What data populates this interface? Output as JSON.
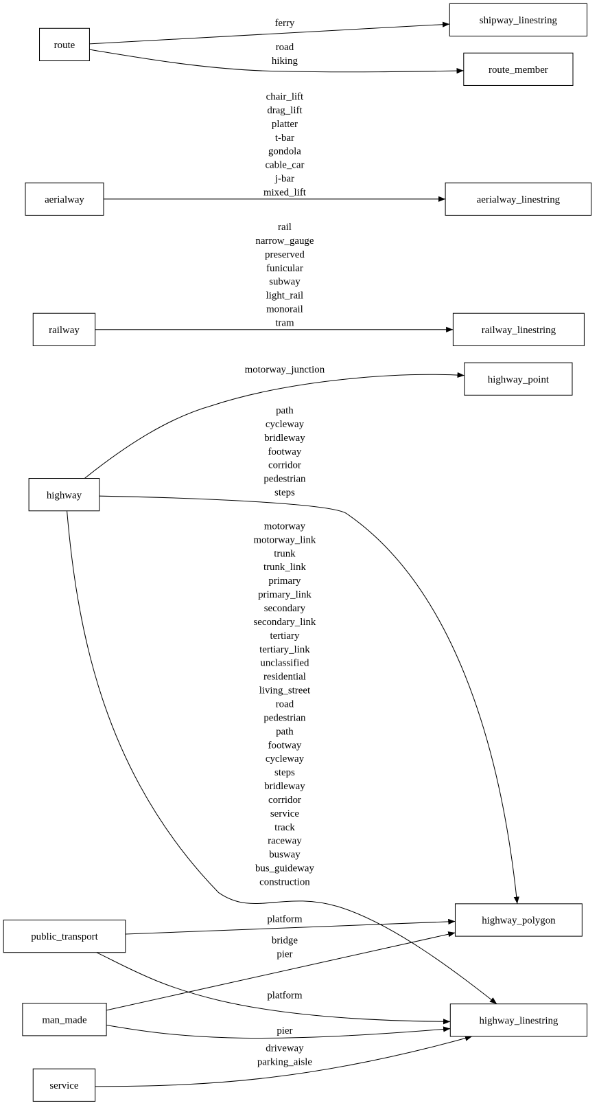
{
  "nodes": {
    "route": "route",
    "shipway_linestring": "shipway_linestring",
    "route_member": "route_member",
    "aerialway": "aerialway",
    "aerialway_linestring": "aerialway_linestring",
    "railway": "railway",
    "railway_linestring": "railway_linestring",
    "highway_point": "highway_point",
    "highway": "highway",
    "highway_polygon": "highway_polygon",
    "highway_linestring": "highway_linestring",
    "public_transport": "public_transport",
    "man_made": "man_made",
    "service": "service"
  },
  "edges": [
    {
      "from": "route",
      "to": "shipway_linestring",
      "labels": [
        "ferry"
      ]
    },
    {
      "from": "route",
      "to": "route_member",
      "labels": [
        "road",
        "hiking"
      ]
    },
    {
      "from": "aerialway",
      "to": "aerialway_linestring",
      "labels": [
        "chair_lift",
        "drag_lift",
        "platter",
        "t-bar",
        "gondola",
        "cable_car",
        "j-bar",
        "mixed_lift"
      ]
    },
    {
      "from": "railway",
      "to": "railway_linestring",
      "labels": [
        "rail",
        "narrow_gauge",
        "preserved",
        "funicular",
        "subway",
        "light_rail",
        "monorail",
        "tram"
      ]
    },
    {
      "from": "highway",
      "to": "highway_point",
      "labels": [
        "motorway_junction"
      ]
    },
    {
      "from": "highway",
      "to": "highway_polygon",
      "labels": [
        "path",
        "cycleway",
        "bridleway",
        "footway",
        "corridor",
        "pedestrian",
        "steps"
      ]
    },
    {
      "from": "highway",
      "to": "highway_linestring",
      "labels": [
        "motorway",
        "motorway_link",
        "trunk",
        "trunk_link",
        "primary",
        "primary_link",
        "secondary",
        "secondary_link",
        "tertiary",
        "tertiary_link",
        "unclassified",
        "residential",
        "living_street",
        "road",
        "pedestrian",
        "path",
        "footway",
        "cycleway",
        "steps",
        "bridleway",
        "corridor",
        "service",
        "track",
        "raceway",
        "busway",
        "bus_guideway",
        "construction"
      ]
    },
    {
      "from": "public_transport",
      "to": "highway_polygon",
      "labels": [
        "platform"
      ]
    },
    {
      "from": "public_transport",
      "to": "highway_linestring",
      "labels": [
        "platform"
      ]
    },
    {
      "from": "man_made",
      "to": "highway_polygon",
      "labels": [
        "bridge",
        "pier"
      ]
    },
    {
      "from": "man_made",
      "to": "highway_linestring",
      "labels": [
        "pier"
      ]
    },
    {
      "from": "service",
      "to": "highway_linestring",
      "labels": [
        "driveway",
        "parking_aisle"
      ]
    }
  ]
}
